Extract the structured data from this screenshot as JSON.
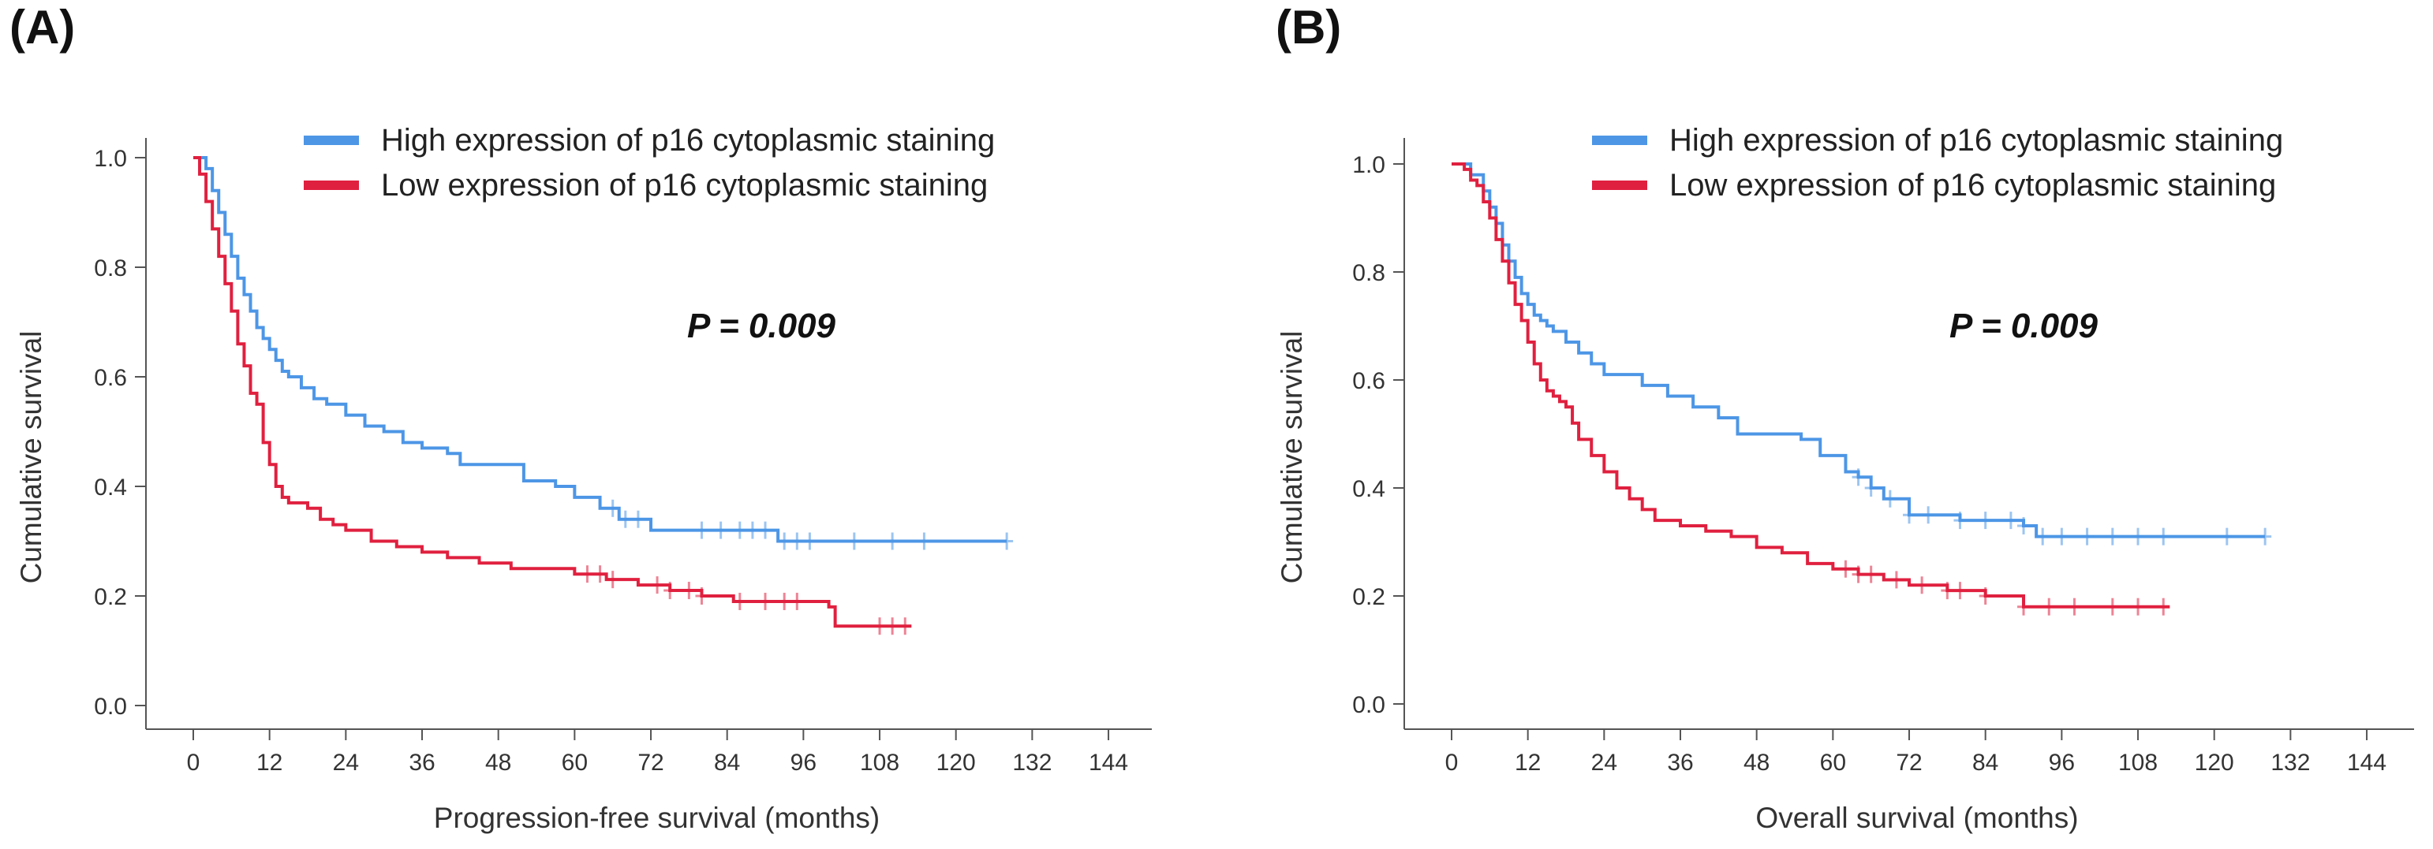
{
  "chart_data": [
    {
      "panel_label": "(A)",
      "type": "line",
      "step": true,
      "xlabel": "Progression-free survival (months)",
      "ylabel": "Cumulative survival",
      "annotation": "P = 0.009",
      "xlim": [
        0,
        144
      ],
      "ylim": [
        0,
        1
      ],
      "xticks": [
        "0",
        "12",
        "24",
        "36",
        "48",
        "60",
        "72",
        "84",
        "96",
        "108",
        "120",
        "132",
        "144"
      ],
      "yticks": [
        "0.0",
        "0.2",
        "0.4",
        "0.6",
        "0.8",
        "1.0"
      ],
      "grid": false,
      "legend_position": "top",
      "series": [
        {
          "name": "High expression of p16 cytoplasmic staining",
          "color": "#4d96e6",
          "x": [
            0,
            2,
            3,
            4,
            5,
            6,
            7,
            8,
            9,
            10,
            11,
            12,
            13,
            14,
            15,
            17,
            19,
            21,
            24,
            27,
            30,
            33,
            36,
            40,
            42,
            48,
            52,
            57,
            60,
            64,
            67,
            72,
            80,
            86,
            92,
            100,
            110,
            120,
            128
          ],
          "y": [
            1.0,
            0.98,
            0.94,
            0.9,
            0.86,
            0.82,
            0.78,
            0.75,
            0.72,
            0.69,
            0.67,
            0.65,
            0.63,
            0.61,
            0.6,
            0.58,
            0.56,
            0.55,
            0.53,
            0.51,
            0.5,
            0.48,
            0.47,
            0.46,
            0.44,
            0.44,
            0.41,
            0.4,
            0.38,
            0.36,
            0.34,
            0.32,
            0.32,
            0.32,
            0.3,
            0.3,
            0.3,
            0.3,
            0.3
          ],
          "censored_x": [
            66,
            68,
            70,
            80,
            83,
            86,
            88,
            90,
            93,
            95,
            97,
            104,
            110,
            115,
            128
          ]
        },
        {
          "name": "Low expression of p16 cytoplasmic staining",
          "color": "#e0203f",
          "x": [
            0,
            1,
            2,
            3,
            4,
            5,
            6,
            7,
            8,
            9,
            10,
            11,
            12,
            13,
            14,
            15,
            16,
            18,
            20,
            22,
            24,
            28,
            32,
            36,
            40,
            45,
            50,
            55,
            60,
            65,
            70,
            75,
            80,
            85,
            90,
            95,
            100,
            101,
            110,
            113
          ],
          "y": [
            1.0,
            0.97,
            0.92,
            0.87,
            0.82,
            0.77,
            0.72,
            0.66,
            0.62,
            0.57,
            0.55,
            0.48,
            0.44,
            0.4,
            0.38,
            0.37,
            0.37,
            0.36,
            0.34,
            0.33,
            0.32,
            0.3,
            0.29,
            0.28,
            0.27,
            0.26,
            0.25,
            0.25,
            0.24,
            0.23,
            0.22,
            0.21,
            0.2,
            0.19,
            0.19,
            0.19,
            0.18,
            0.145,
            0.145,
            0.145
          ],
          "censored_x": [
            62,
            64,
            66,
            73,
            75,
            78,
            80,
            86,
            90,
            93,
            95,
            108,
            110,
            112
          ]
        }
      ]
    },
    {
      "panel_label": "(B)",
      "type": "line",
      "step": true,
      "xlabel": "Overall survival (months)",
      "ylabel": "Cumulative survival",
      "annotation": "P = 0.009",
      "xlim": [
        0,
        144
      ],
      "ylim": [
        0,
        1
      ],
      "xticks": [
        "0",
        "12",
        "24",
        "36",
        "48",
        "60",
        "72",
        "84",
        "96",
        "108",
        "120",
        "132",
        "144"
      ],
      "yticks": [
        "0.0",
        "0.2",
        "0.4",
        "0.6",
        "0.8",
        "1.0"
      ],
      "grid": false,
      "legend_position": "top",
      "series": [
        {
          "name": "High expression of p16 cytoplasmic staining",
          "color": "#4d96e6",
          "x": [
            0,
            3,
            5,
            6,
            7,
            8,
            9,
            10,
            11,
            12,
            13,
            14,
            15,
            16,
            18,
            20,
            22,
            24,
            28,
            30,
            34,
            38,
            42,
            45,
            48,
            55,
            58,
            62,
            64,
            66,
            68,
            72,
            76,
            80,
            84,
            90,
            92,
            96,
            110,
            128
          ],
          "y": [
            1.0,
            0.98,
            0.95,
            0.92,
            0.89,
            0.85,
            0.82,
            0.79,
            0.76,
            0.74,
            0.72,
            0.71,
            0.7,
            0.69,
            0.67,
            0.65,
            0.63,
            0.61,
            0.61,
            0.59,
            0.57,
            0.55,
            0.53,
            0.5,
            0.5,
            0.49,
            0.46,
            0.43,
            0.42,
            0.4,
            0.38,
            0.35,
            0.35,
            0.34,
            0.34,
            0.33,
            0.31,
            0.31,
            0.31,
            0.31
          ],
          "censored_x": [
            64,
            66,
            69,
            72,
            75,
            80,
            84,
            88,
            90,
            93,
            96,
            100,
            104,
            108,
            112,
            122,
            128
          ]
        },
        {
          "name": "Low expression of p16 cytoplasmic staining",
          "color": "#e0203f",
          "x": [
            0,
            2,
            3,
            4,
            5,
            6,
            7,
            8,
            9,
            10,
            11,
            12,
            13,
            14,
            15,
            16,
            17,
            18,
            19,
            20,
            22,
            24,
            26,
            28,
            30,
            32,
            36,
            40,
            44,
            48,
            52,
            56,
            60,
            64,
            68,
            72,
            78,
            84,
            90,
            100,
            113
          ],
          "y": [
            1.0,
            0.99,
            0.97,
            0.96,
            0.93,
            0.9,
            0.86,
            0.82,
            0.78,
            0.74,
            0.71,
            0.67,
            0.63,
            0.6,
            0.58,
            0.57,
            0.56,
            0.55,
            0.52,
            0.49,
            0.46,
            0.43,
            0.4,
            0.38,
            0.36,
            0.34,
            0.33,
            0.32,
            0.31,
            0.29,
            0.28,
            0.26,
            0.25,
            0.24,
            0.23,
            0.22,
            0.21,
            0.2,
            0.18,
            0.18,
            0.18
          ],
          "censored_x": [
            62,
            64,
            66,
            70,
            74,
            78,
            80,
            84,
            90,
            94,
            98,
            104,
            108,
            112
          ]
        }
      ]
    }
  ]
}
